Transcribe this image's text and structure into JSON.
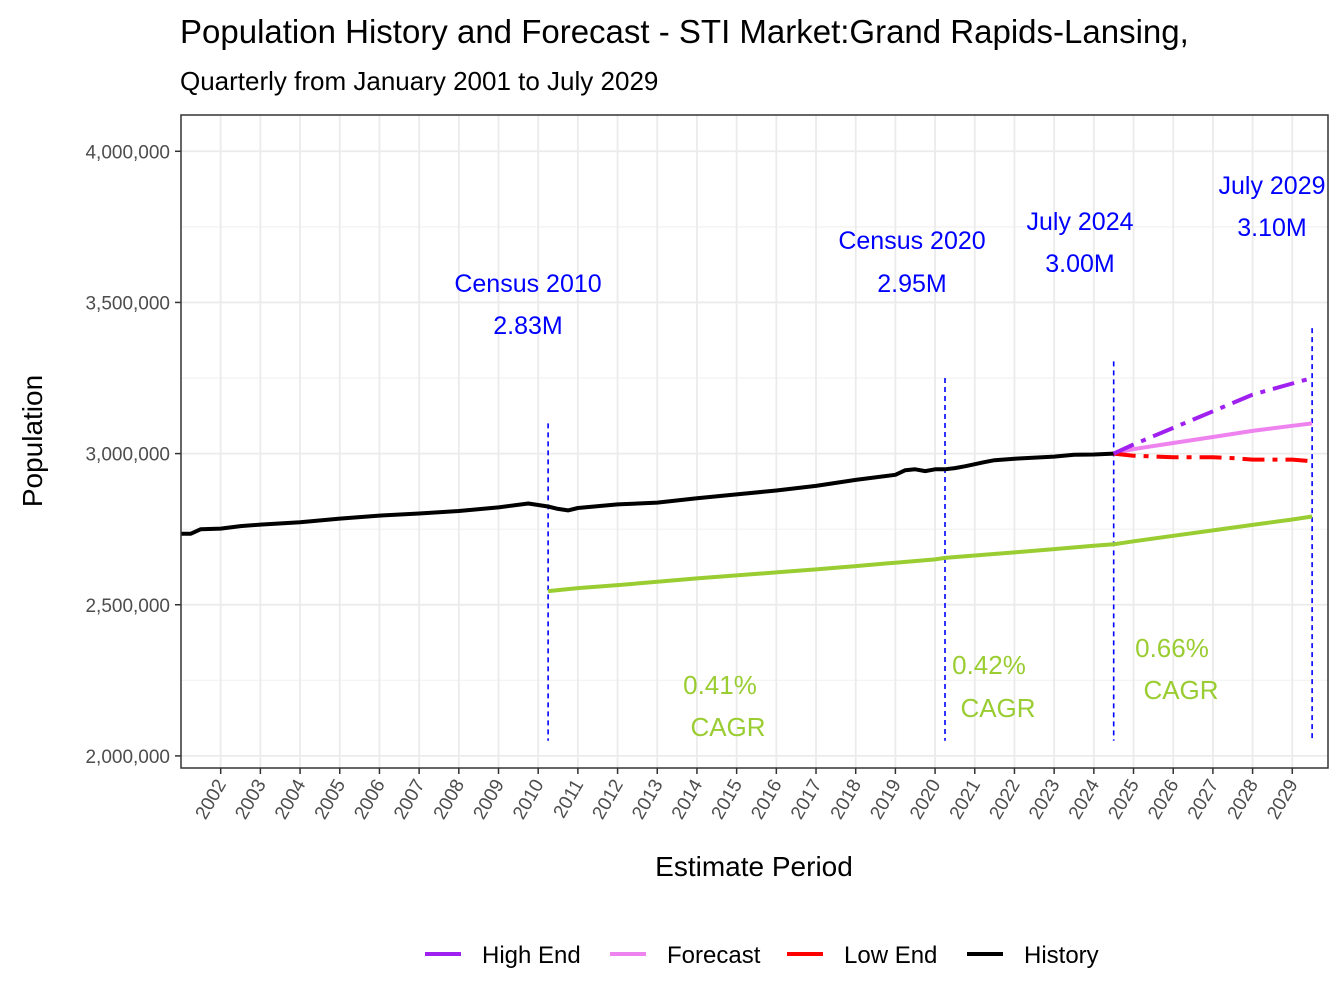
{
  "chart_data": {
    "type": "line",
    "title": "Population History and Forecast - STI Market:Grand Rapids-Lansing,",
    "subtitle": "Quarterly from January 2001 to July 2029",
    "xlabel": "Estimate Period",
    "ylabel": "Population",
    "xlim": [
      2001.0,
      2029.9
    ],
    "ylim": [
      1960000,
      4120000
    ],
    "y_ticks": [
      2000000,
      2500000,
      3000000,
      3500000,
      4000000
    ],
    "y_tick_labels": [
      "2,000,000",
      "2,500,000",
      "3,000,000",
      "3,500,000",
      "4,000,000"
    ],
    "x_tick_labels": [
      "2002",
      "2003",
      "2004",
      "2005",
      "2006",
      "2007",
      "2008",
      "2009",
      "2010",
      "2011",
      "2012",
      "2013",
      "2014",
      "2015",
      "2016",
      "2017",
      "2018",
      "2019",
      "2020",
      "2021",
      "2022",
      "2023",
      "2024",
      "2025",
      "2026",
      "2027",
      "2028",
      "2029"
    ],
    "series": [
      {
        "name": "History",
        "color": "#000000",
        "dash": "solid",
        "x": [
          2001.0,
          2001.25,
          2001.5,
          2002.0,
          2002.5,
          2003.0,
          2004.0,
          2005.0,
          2006.0,
          2007.0,
          2008.0,
          2009.0,
          2009.75,
          2010.0,
          2010.25,
          2010.5,
          2010.75,
          2011.0,
          2012.0,
          2013.0,
          2014.0,
          2015.0,
          2016.0,
          2017.0,
          2018.0,
          2019.0,
          2019.25,
          2019.5,
          2019.75,
          2020.0,
          2020.25,
          2020.5,
          2020.75,
          2021.0,
          2021.25,
          2021.5,
          2022.0,
          2023.0,
          2023.5,
          2024.0,
          2024.5
        ],
        "values": [
          2735000,
          2735000,
          2750000,
          2752000,
          2760000,
          2765000,
          2773000,
          2785000,
          2795000,
          2802000,
          2810000,
          2822000,
          2835000,
          2830000,
          2825000,
          2817000,
          2812000,
          2820000,
          2832000,
          2838000,
          2852000,
          2865000,
          2878000,
          2893000,
          2913000,
          2930000,
          2945000,
          2948000,
          2942000,
          2948000,
          2948000,
          2952000,
          2958000,
          2965000,
          2972000,
          2978000,
          2983000,
          2990000,
          2996000,
          2997000,
          3000000
        ]
      },
      {
        "name": "Forecast",
        "color": "#ee82ee",
        "dash": "solid",
        "x": [
          2024.5,
          2025.0,
          2026.0,
          2027.0,
          2028.0,
          2029.0,
          2029.5
        ],
        "values": [
          3000000,
          3015000,
          3035000,
          3055000,
          3075000,
          3092000,
          3100000
        ]
      },
      {
        "name": "High End",
        "color": "#a020f0",
        "dash": "dashdot",
        "x": [
          2024.5,
          2025.0,
          2026.0,
          2027.0,
          2028.0,
          2029.0,
          2029.5
        ],
        "values": [
          3000000,
          3030000,
          3085000,
          3140000,
          3195000,
          3232000,
          3250000
        ]
      },
      {
        "name": "Low End",
        "color": "#ff0000",
        "dash": "dashdot",
        "x": [
          2024.5,
          2025.0,
          2026.0,
          2027.0,
          2027.5,
          2028.0,
          2029.0,
          2029.5
        ],
        "values": [
          3000000,
          2993000,
          2988000,
          2988000,
          2985000,
          2980000,
          2980000,
          2975000
        ]
      },
      {
        "name": "CAGR trend",
        "color": "#9acd32",
        "dash": "solid",
        "x": [
          2010.25,
          2011.0,
          2012.0,
          2013.0,
          2014.0,
          2015.0,
          2016.0,
          2017.0,
          2018.0,
          2019.0,
          2020.0,
          2020.25,
          2021.0,
          2022.0,
          2023.0,
          2024.0,
          2024.5,
          2025.0,
          2026.0,
          2027.0,
          2028.0,
          2029.0,
          2029.5
        ],
        "values": [
          2545000,
          2555000,
          2565000,
          2576000,
          2587000,
          2597000,
          2607000,
          2617000,
          2628000,
          2639000,
          2650000,
          2655000,
          2663000,
          2673000,
          2684000,
          2695000,
          2700000,
          2710000,
          2728000,
          2746000,
          2764000,
          2782000,
          2792000
        ]
      }
    ],
    "reference_lines": [
      {
        "x": 2010.25,
        "y_top": 3100000,
        "label": "Census 2010",
        "value_label": "2.83M"
      },
      {
        "x": 2020.25,
        "y_top": 3250000,
        "label": "Census 2020",
        "value_label": "2.95M"
      },
      {
        "x": 2024.5,
        "y_top": 3305000,
        "label": "July 2024",
        "value_label": "3.00M"
      },
      {
        "x": 2029.5,
        "y_top": 3415000,
        "label": "July 2029",
        "value_label": "3.10M"
      }
    ],
    "cagr_labels": [
      {
        "value": "0.41%",
        "unit": "CAGR"
      },
      {
        "value": "0.42%",
        "unit": "CAGR"
      },
      {
        "value": "0.66%",
        "unit": "CAGR"
      }
    ],
    "legend": {
      "position": "bottom",
      "entries": [
        {
          "label": "High End",
          "color": "#a020f0"
        },
        {
          "label": "Forecast",
          "color": "#ee82ee"
        },
        {
          "label": "Low End",
          "color": "#ff0000"
        },
        {
          "label": "History",
          "color": "#000000"
        }
      ]
    }
  }
}
